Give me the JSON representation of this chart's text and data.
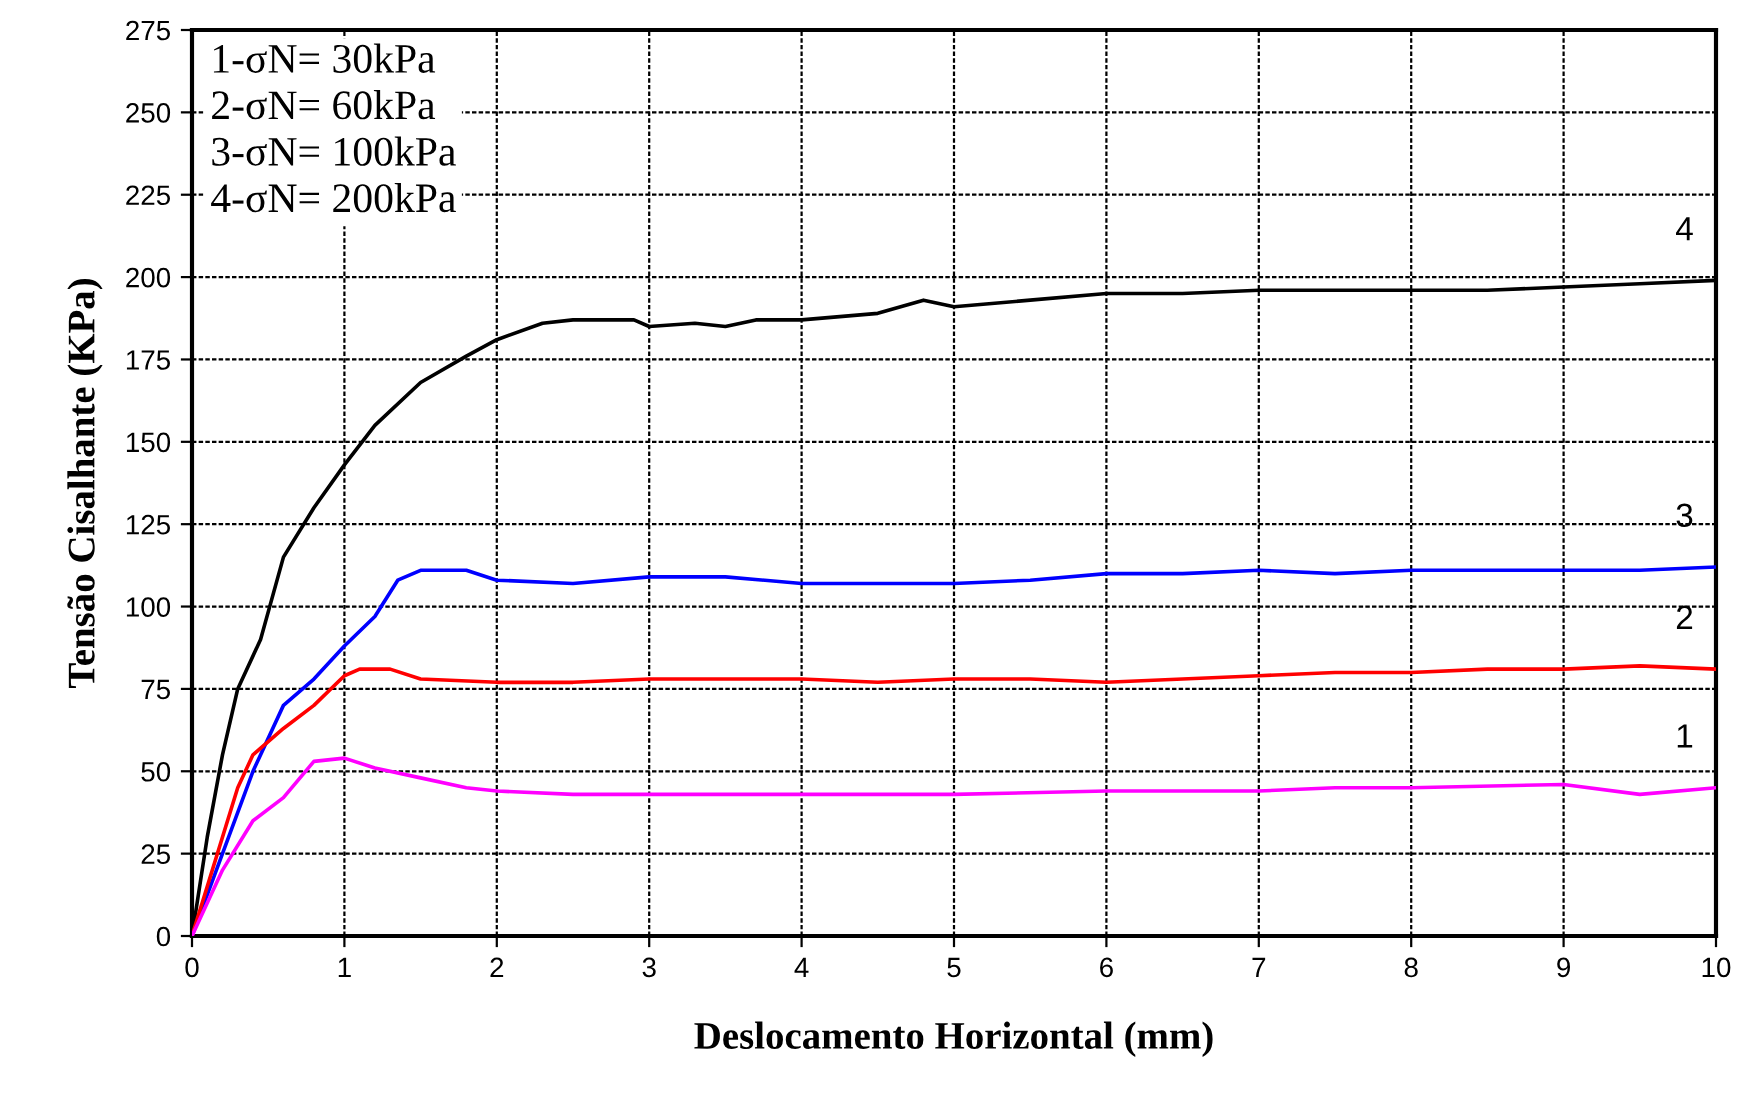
{
  "chart_data": {
    "type": "line",
    "xlabel": "Deslocamento Horizontal (mm)",
    "ylabel": "Tensão Cisalhante (KPa)",
    "xlim": [
      0,
      10
    ],
    "xticks": [
      0,
      1,
      2,
      3,
      4,
      5,
      6,
      7,
      8,
      9,
      10
    ],
    "ylim": [
      0,
      275
    ],
    "yticks": [
      0,
      25,
      50,
      75,
      100,
      125,
      150,
      175,
      200,
      225,
      250,
      275
    ],
    "grid": true,
    "line_style": "solid",
    "annotations": [
      "1-σN= 30kPa",
      "2-σN= 60kPa",
      "3-σN= 100kPa",
      "4-σN= 200kPa"
    ],
    "series": [
      {
        "name": "4",
        "color": "#000000",
        "x": [
          0,
          0.1,
          0.2,
          0.3,
          0.45,
          0.6,
          0.8,
          1.0,
          1.2,
          1.5,
          1.8,
          2.0,
          2.3,
          2.5,
          2.9,
          3.0,
          3.3,
          3.5,
          3.7,
          4.0,
          4.5,
          4.8,
          5.0,
          5.5,
          6.0,
          6.5,
          7.0,
          7.5,
          8.0,
          8.5,
          9.0,
          9.5,
          10.0
        ],
        "values": [
          0,
          30,
          55,
          75,
          90,
          115,
          130,
          143,
          155,
          168,
          176,
          181,
          186,
          187,
          187,
          185,
          186,
          185,
          187,
          187,
          189,
          193,
          191,
          193,
          195,
          195,
          196,
          196,
          196,
          196,
          197,
          198,
          199
        ]
      },
      {
        "name": "3",
        "color": "#0000ff",
        "x": [
          0,
          0.2,
          0.4,
          0.6,
          0.8,
          1.0,
          1.2,
          1.35,
          1.5,
          1.8,
          2.0,
          2.5,
          3.0,
          3.5,
          4.0,
          4.5,
          5.0,
          5.5,
          6.0,
          6.5,
          7.0,
          7.5,
          8.0,
          9.0,
          9.5,
          10.0
        ],
        "values": [
          0,
          25,
          50,
          70,
          78,
          88,
          97,
          108,
          111,
          111,
          108,
          107,
          109,
          109,
          107,
          107,
          107,
          108,
          110,
          110,
          111,
          110,
          111,
          111,
          111,
          112
        ]
      },
      {
        "name": "2",
        "color": "#ff0000",
        "x": [
          0,
          0.3,
          0.4,
          0.6,
          0.8,
          1.0,
          1.1,
          1.3,
          1.5,
          2.0,
          2.5,
          3.0,
          3.5,
          4.0,
          4.5,
          5.0,
          5.5,
          6.0,
          6.5,
          7.0,
          7.5,
          8.0,
          8.5,
          9.0,
          9.5,
          10.0
        ],
        "values": [
          0,
          45,
          55,
          63,
          70,
          79,
          81,
          81,
          78,
          77,
          77,
          78,
          78,
          78,
          77,
          78,
          78,
          77,
          78,
          79,
          80,
          80,
          81,
          81,
          82,
          81
        ]
      },
      {
        "name": "1",
        "color": "#ff00ff",
        "x": [
          0,
          0.2,
          0.4,
          0.6,
          0.8,
          1.0,
          1.2,
          1.5,
          1.8,
          2.0,
          2.5,
          3.0,
          4.0,
          5.0,
          6.0,
          7.0,
          7.5,
          8.0,
          9.0,
          9.5,
          10.0
        ],
        "values": [
          0,
          20,
          35,
          42,
          53,
          54,
          51,
          48,
          45,
          44,
          43,
          43,
          43,
          43,
          44,
          44,
          45,
          45,
          46,
          43,
          45
        ]
      }
    ]
  }
}
